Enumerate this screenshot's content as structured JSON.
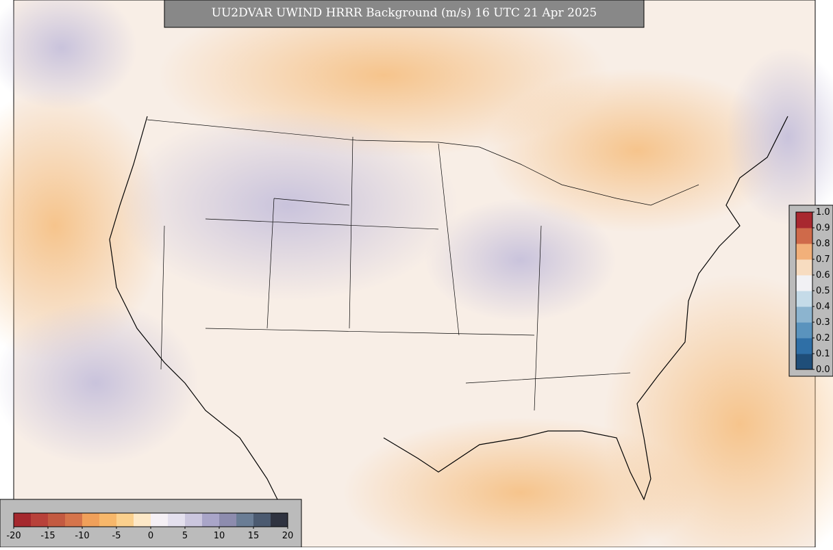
{
  "title": "UU2DVAR UWIND HRRR Background (m/s) 16 UTC 21 Apr 2025",
  "colorbars": [
    {
      "orientation": "horizontal",
      "lim": [
        -20,
        20
      ],
      "ticks": [
        -20,
        -15,
        -10,
        -5,
        0,
        5,
        10,
        15,
        20
      ],
      "colors": [
        "#a5282e",
        "#b8413a",
        "#c35a41",
        "#d5744b",
        "#f0a05a",
        "#f7b76a",
        "#fbd08d",
        "#fde8c7",
        "#f5f0f5",
        "#e4e0ee",
        "#cbc6de",
        "#a9a5c8",
        "#8d8cae",
        "#6a7d95",
        "#4b5a70",
        "#2f3340"
      ]
    },
    {
      "orientation": "vertical",
      "lim": [
        0,
        1
      ],
      "ticks": [
        {
          "value": 0,
          "label": "0.0"
        },
        0.1,
        0.2,
        0.3,
        0.4,
        0.5,
        0.6,
        0.7,
        0.8,
        0.9,
        {
          "value": 1,
          "label": "1.0"
        }
      ],
      "colors": [
        "#1f4e79",
        "#2f6fa6",
        "#5a93bd",
        "#8cb4cf",
        "#c5dbe8",
        "#f1f1f4",
        "#f7dcc0",
        "#f2b07a",
        "#cf6a4a",
        "#a8282f"
      ]
    }
  ]
}
